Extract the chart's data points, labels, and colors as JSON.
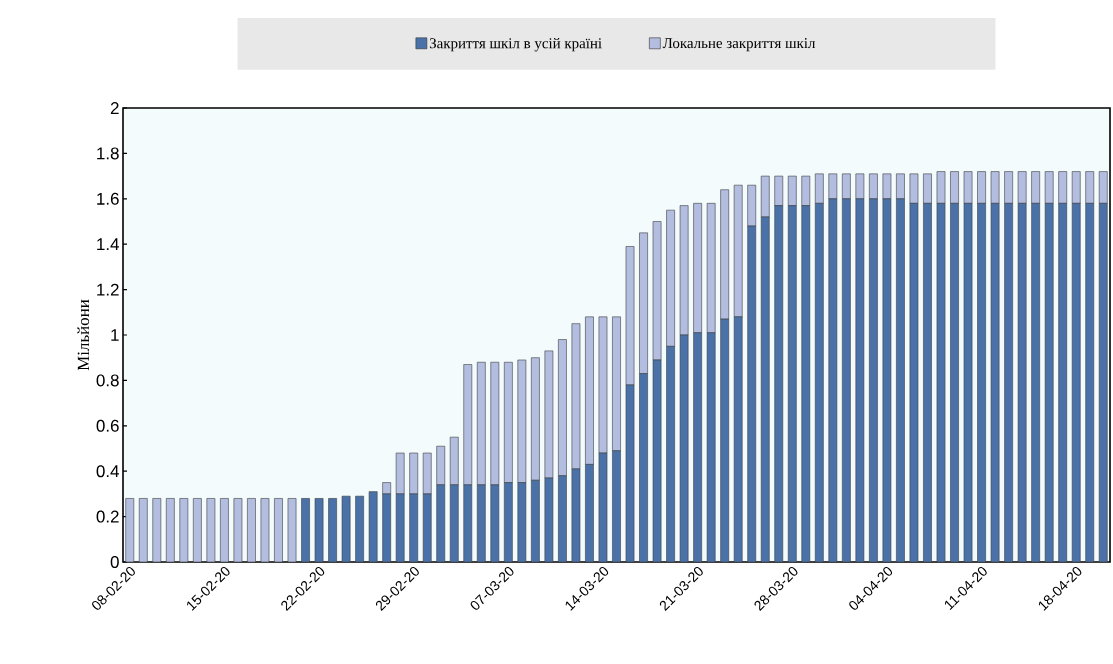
{
  "chart_data": {
    "type": "bar",
    "stacked": true,
    "ylabel": "Мільйони",
    "legend": "top",
    "categories": [
      "08-02-20",
      null,
      null,
      null,
      null,
      null,
      null,
      "15-02-20",
      null,
      null,
      null,
      null,
      null,
      null,
      "22-02-20",
      null,
      null,
      null,
      null,
      null,
      null,
      "29-02-20",
      null,
      null,
      null,
      null,
      null,
      null,
      "07-03-20",
      null,
      null,
      null,
      null,
      null,
      null,
      "14-03-20",
      null,
      null,
      null,
      null,
      null,
      null,
      "21-03-20",
      null,
      null,
      null,
      null,
      null,
      null,
      "28-03-20",
      null,
      null,
      null,
      null,
      null,
      null,
      "04-04-20",
      null,
      null,
      null,
      null,
      null,
      null,
      "11-04-20",
      null,
      null,
      null,
      null,
      null,
      null,
      "18-04-20",
      null,
      null
    ],
    "ylim": [
      0,
      2
    ],
    "yticks": [
      0,
      0.2,
      0.4,
      0.6,
      0.8,
      1,
      1.2,
      1.4,
      1.6,
      1.8,
      2
    ],
    "series": [
      {
        "name": "Закриття шкіл в усій країні",
        "color": "#4a72a8",
        "values": [
          0,
          0,
          0,
          0,
          0,
          0,
          0,
          0,
          0,
          0,
          0,
          0,
          0,
          0.28,
          0.28,
          0.28,
          0.29,
          0.29,
          0.31,
          0.3,
          0.3,
          0.3,
          0.3,
          0.34,
          0.34,
          0.34,
          0.34,
          0.34,
          0.35,
          0.35,
          0.36,
          0.37,
          0.38,
          0.41,
          0.43,
          0.48,
          0.49,
          0.78,
          0.83,
          0.89,
          0.95,
          1.0,
          1.01,
          1.01,
          1.07,
          1.08,
          1.48,
          1.52,
          1.57,
          1.57,
          1.57,
          1.58,
          1.6,
          1.6,
          1.6,
          1.6,
          1.6,
          1.6,
          1.58,
          1.58,
          1.58,
          1.58,
          1.58,
          1.58,
          1.58,
          1.58,
          1.58,
          1.58,
          1.58,
          1.58,
          1.58,
          1.58,
          1.58
        ]
      },
      {
        "name": "Локальне закриття шкіл",
        "color": "#b3bde0",
        "values": [
          0.28,
          0.28,
          0.28,
          0.28,
          0.28,
          0.28,
          0.28,
          0.28,
          0.28,
          0.28,
          0.28,
          0.28,
          0.28,
          0,
          0,
          0,
          0,
          0,
          0,
          0.05,
          0.18,
          0.18,
          0.18,
          0.17,
          0.21,
          0.53,
          0.54,
          0.54,
          0.53,
          0.54,
          0.54,
          0.56,
          0.6,
          0.64,
          0.65,
          0.6,
          0.59,
          0.61,
          0.62,
          0.61,
          0.6,
          0.57,
          0.57,
          0.57,
          0.57,
          0.58,
          0.18,
          0.18,
          0.13,
          0.13,
          0.13,
          0.13,
          0.11,
          0.11,
          0.11,
          0.11,
          0.11,
          0.11,
          0.13,
          0.13,
          0.14,
          0.14,
          0.14,
          0.14,
          0.14,
          0.14,
          0.14,
          0.14,
          0.14,
          0.14,
          0.14,
          0.14,
          0.14
        ]
      }
    ]
  }
}
